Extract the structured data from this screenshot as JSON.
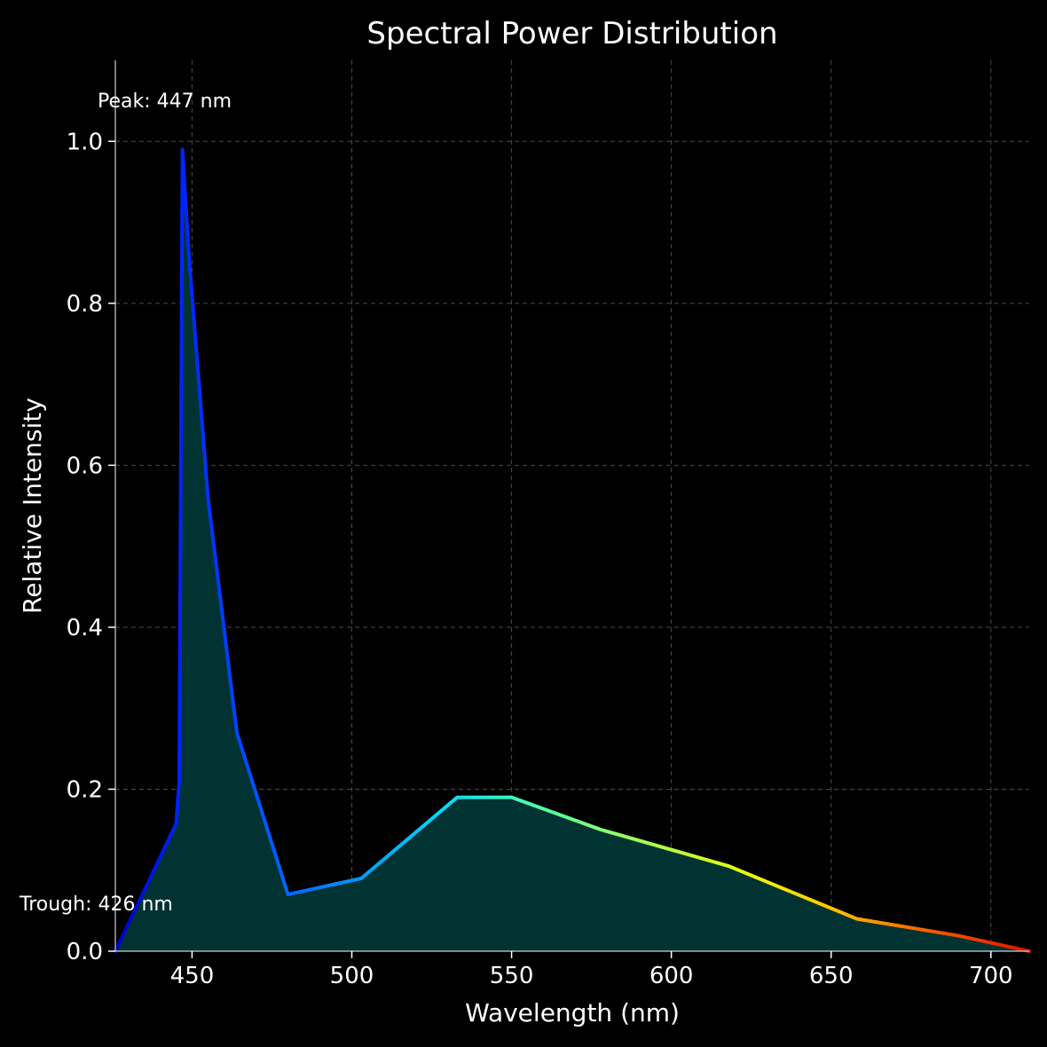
{
  "chart_data": {
    "type": "area",
    "title": "Spectral Power Distribution",
    "xlabel": "Wavelength (nm)",
    "ylabel": "Relative Intensity",
    "xlim": [
      426,
      712
    ],
    "ylim": [
      0,
      1.1
    ],
    "xticks": [
      450,
      500,
      550,
      600,
      650,
      700
    ],
    "yticks": [
      0.0,
      0.2,
      0.4,
      0.6,
      0.8,
      1.0
    ],
    "xtick_labels": [
      "450",
      "500",
      "550",
      "600",
      "650",
      "700"
    ],
    "ytick_labels": [
      "0.0",
      "0.2",
      "0.4",
      "0.6",
      "0.8",
      "1.0"
    ],
    "grid": true,
    "line_colormap": "jet",
    "fill_color": "#003331",
    "background": "#000000",
    "series": [
      {
        "x": [
          426,
          445,
          446,
          447,
          449,
          455,
          464,
          480,
          503,
          533,
          550,
          578,
          618,
          658,
          690,
          712
        ],
        "y": [
          0.0,
          0.157,
          0.21,
          0.99,
          0.86,
          0.56,
          0.27,
          0.07,
          0.09,
          0.19,
          0.19,
          0.15,
          0.105,
          0.04,
          0.019,
          0.0
        ]
      }
    ],
    "annotations": [
      {
        "text": "Peak: 447 nm",
        "x": 447,
        "y": 0.99
      },
      {
        "text": "Trough: 426 nm",
        "x": 426,
        "y": 0.0
      }
    ]
  }
}
